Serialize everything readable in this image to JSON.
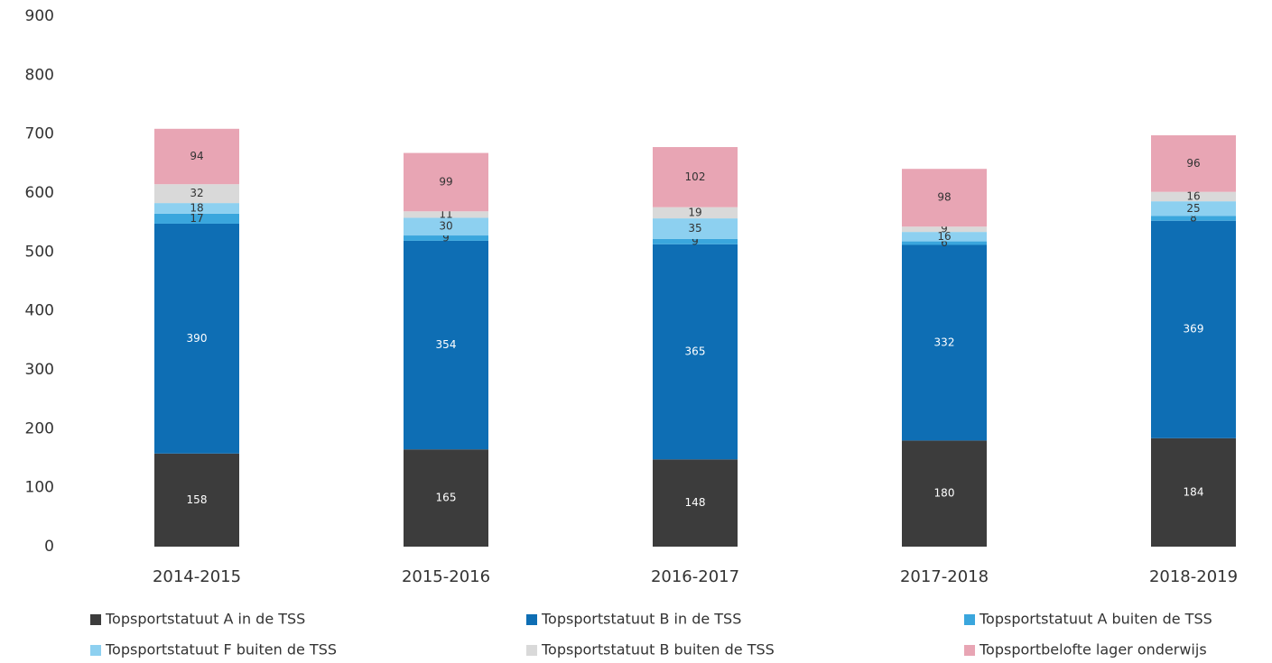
{
  "chart_data": {
    "type": "stacked_bar",
    "categories": [
      "2014-2015",
      "2015-2016",
      "2016-2017",
      "2017-2018",
      "2018-2019"
    ],
    "series": [
      {
        "name": "Topsportstatuut A in de TSS",
        "color": "#3c3c3c",
        "values": [
          158,
          165,
          148,
          180,
          184
        ]
      },
      {
        "name": "Topsportstatuut B in de TSS",
        "color": "#0e6eb4",
        "values": [
          390,
          354,
          365,
          332,
          369
        ]
      },
      {
        "name": "Topsportstatuut A buiten de TSS",
        "color": "#3aa6dd",
        "values": [
          17,
          9,
          9,
          6,
          8
        ]
      },
      {
        "name": "Topsportstatuut F buiten de TSS",
        "color": "#8dd0f0",
        "values": [
          18,
          30,
          35,
          16,
          25
        ]
      },
      {
        "name": "Topsportstatuut B buiten de TSS",
        "color": "#d9d9d9",
        "values": [
          32,
          11,
          19,
          9,
          16
        ]
      },
      {
        "name": "Topsportbelofte lager onderwijs",
        "color": "#e8a5b4",
        "values": [
          94,
          99,
          102,
          98,
          96
        ]
      }
    ],
    "ylim": [
      0,
      900
    ],
    "yticks": [
      0,
      100,
      200,
      300,
      400,
      500,
      600,
      700,
      800,
      900
    ],
    "grid": false,
    "legend": "bottom"
  }
}
